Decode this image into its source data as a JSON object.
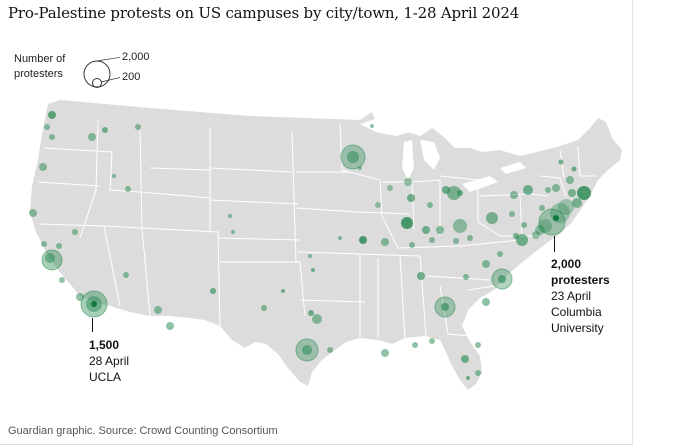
{
  "title": "Pro-Palestine protests on US campuses by city/town, 1-28 April 2024",
  "legend": {
    "label": "Number of protesters",
    "max_label": "2,000",
    "min_label": "200"
  },
  "colors": {
    "land": "#dcdcdc",
    "state_border": "#ffffff",
    "bubble_fill": "#22874d",
    "bubble_core": "#137a3e"
  },
  "annotations": {
    "ucla": {
      "value": "1,500",
      "date": "28 April",
      "place": "UCLA"
    },
    "columbia": {
      "value": "2,000",
      "unit": "protesters",
      "date": "23 April",
      "place1": "Columbia",
      "place2": "University"
    }
  },
  "source": "Guardian graphic. Source: Crowd Counting Consortium"
}
